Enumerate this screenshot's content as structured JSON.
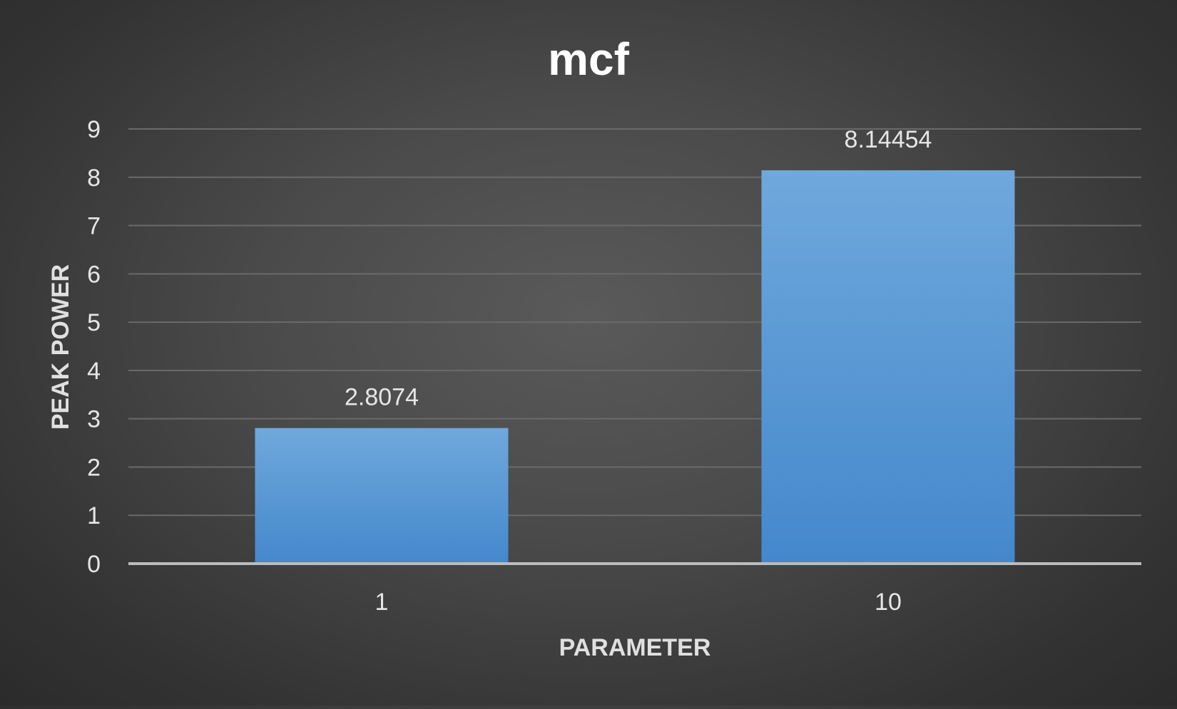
{
  "chart_data": {
    "type": "bar",
    "title": "mcf",
    "xlabel": "PARAMETER",
    "ylabel": "PEAK POWER",
    "categories": [
      "1",
      "10"
    ],
    "values": [
      2.8074,
      8.14454
    ],
    "data_labels": [
      "2.8074",
      "8.14454"
    ],
    "ylim": [
      0,
      9
    ],
    "yticks": [
      0,
      1,
      2,
      3,
      4,
      5,
      6,
      7,
      8,
      9
    ],
    "grid": true,
    "legend": "none",
    "colors": {
      "bar_top": "#6fa8dc",
      "bar_bottom": "#4488cc",
      "background": "#444444",
      "gridline": "#6a6a6a",
      "text": "#e6e6e6"
    }
  }
}
